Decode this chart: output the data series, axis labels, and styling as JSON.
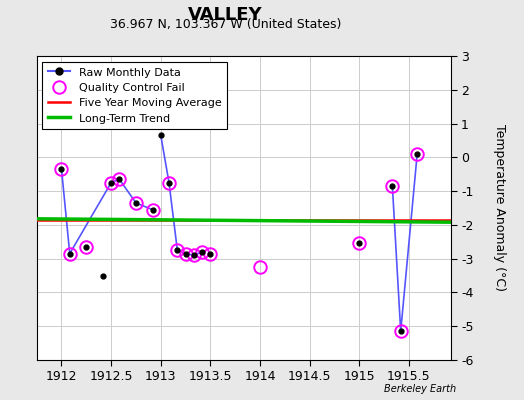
{
  "title": "VALLEY",
  "subtitle": "36.967 N, 103.367 W (United States)",
  "credit": "Berkeley Earth",
  "ylabel": "Temperature Anomaly (°C)",
  "xlim": [
    1911.75,
    1915.92
  ],
  "ylim": [
    -6,
    3
  ],
  "yticks": [
    -6,
    -5,
    -4,
    -3,
    -2,
    -1,
    0,
    1,
    2,
    3
  ],
  "xticks": [
    1912,
    1912.5,
    1913,
    1913.5,
    1914,
    1914.5,
    1915,
    1915.5
  ],
  "segments": [
    {
      "x": [
        1912.0,
        1912.083,
        1912.5,
        1912.583,
        1912.75,
        1912.917
      ],
      "y": [
        -0.35,
        -2.85,
        -0.75,
        -0.65,
        -1.35,
        -1.55
      ]
    },
    {
      "x": [
        1913.0,
        1913.083,
        1913.167,
        1913.25,
        1913.333,
        1913.417
      ],
      "y": [
        0.65,
        -0.75,
        -2.75,
        -2.85,
        -2.9,
        -2.8
      ]
    },
    {
      "x": [
        1915.333,
        1915.417,
        1915.583
      ],
      "y": [
        -0.85,
        -5.15,
        0.1
      ]
    }
  ],
  "solo_dots": {
    "x": [
      1912.25,
      1912.417,
      1913.5,
      1915.0
    ],
    "y": [
      -2.65,
      -3.5,
      -2.85,
      -2.55
    ]
  },
  "all_raw_dots": {
    "x": [
      1912.0,
      1912.083,
      1912.25,
      1912.417,
      1912.5,
      1912.583,
      1912.75,
      1912.917,
      1913.0,
      1913.083,
      1913.167,
      1913.25,
      1913.333,
      1913.417,
      1913.5,
      1915.0,
      1915.333,
      1915.417,
      1915.583
    ],
    "y": [
      -0.35,
      -2.85,
      -2.65,
      -3.5,
      -0.75,
      -0.65,
      -1.35,
      -1.55,
      0.65,
      -0.75,
      -2.75,
      -2.85,
      -2.9,
      -2.8,
      -2.85,
      -2.55,
      -0.85,
      -5.15,
      0.1
    ]
  },
  "qc_fail_dots": {
    "x": [
      1912.0,
      1912.083,
      1912.25,
      1912.5,
      1912.583,
      1912.75,
      1912.917,
      1913.083,
      1913.167,
      1913.25,
      1913.333,
      1913.417,
      1913.5,
      1914.0,
      1915.0,
      1915.333,
      1915.417,
      1915.583
    ],
    "y": [
      -0.35,
      -2.85,
      -2.65,
      -0.75,
      -0.65,
      -1.35,
      -1.55,
      -0.75,
      -2.75,
      -2.85,
      -2.9,
      -2.8,
      -2.85,
      -3.25,
      -2.55,
      -0.85,
      -5.15,
      0.1
    ]
  },
  "five_year_ma": {
    "x": [
      1911.75,
      1915.92
    ],
    "y": [
      -1.85,
      -1.85
    ]
  },
  "long_term_trend": {
    "x": [
      1911.75,
      1915.92
    ],
    "y": [
      -1.82,
      -1.92
    ]
  },
  "raw_line_color": "#5555ff",
  "raw_marker_color": "#000000",
  "qc_fail_color": "#ff00ff",
  "five_year_ma_color": "#ff0000",
  "long_term_trend_color": "#00bb00",
  "background_color": "#e8e8e8",
  "plot_background": "#ffffff",
  "grid_color": "#cccccc",
  "title_fontsize": 13,
  "subtitle_fontsize": 9,
  "tick_fontsize": 9,
  "legend_fontsize": 8
}
